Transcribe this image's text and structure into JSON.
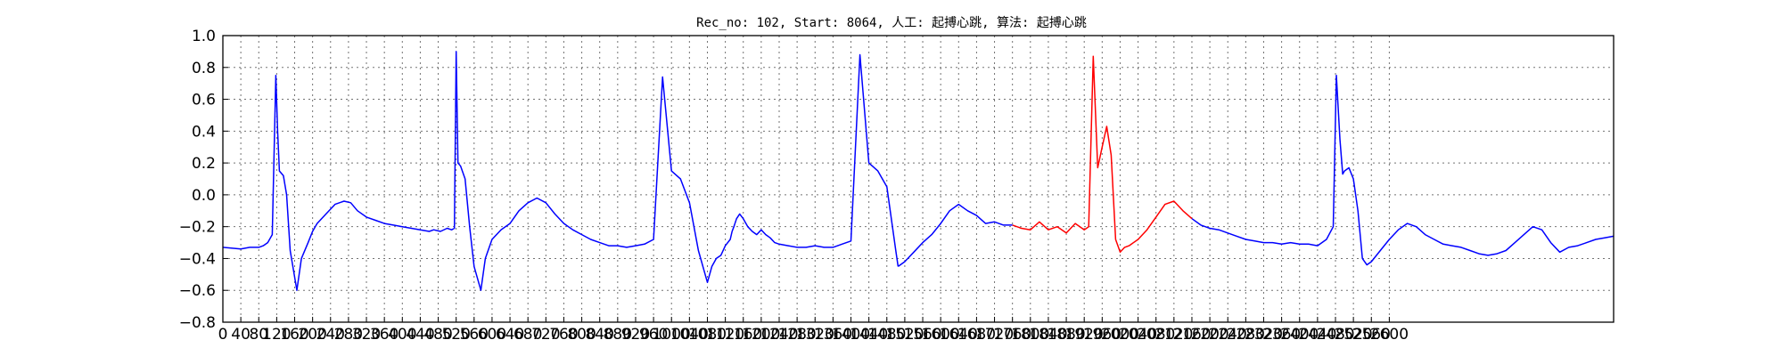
{
  "chart_data": {
    "type": "line",
    "title": "Rec_no: 102, Start: 8064, 人工: 起搏心跳, 算法: 起搏心跳",
    "xlabel": "",
    "ylabel": "",
    "xlim": [
      0,
      3100
    ],
    "ylim": [
      -0.8,
      1.0
    ],
    "grid": true,
    "yticks": [
      -0.8,
      -0.6,
      -0.4,
      -0.2,
      0.0,
      0.2,
      0.4,
      0.6,
      0.8,
      1.0
    ],
    "ytick_labels": [
      "−0.8",
      "−0.6",
      "−0.4",
      "−0.2",
      "0.0",
      "0.2",
      "0.4",
      "0.6",
      "0.8",
      "1.0"
    ],
    "xticks": [
      0,
      40,
      80,
      120,
      160,
      200,
      240,
      280,
      320,
      360,
      400,
      440,
      480,
      520,
      560,
      600,
      640,
      680,
      720,
      760,
      800,
      840,
      880,
      920,
      960,
      1000,
      1040,
      1080,
      1120,
      1160,
      1200,
      1240,
      1280,
      1320,
      1360,
      1400,
      1440,
      1480,
      1520,
      1560,
      1600,
      1640,
      1680,
      1720,
      1760,
      1800,
      1840,
      1880,
      1920,
      1960,
      2000,
      2040,
      2080,
      2120,
      2160,
      2200,
      2240,
      2280,
      2320,
      2360,
      2400,
      2440,
      2480,
      2520,
      2560,
      2600
    ],
    "xtick_labels": [
      "0",
      "40",
      "80",
      "120",
      "160",
      "200",
      "240",
      "280",
      "320",
      "360",
      "400",
      "440",
      "480",
      "520",
      "560",
      "600",
      "640",
      "680",
      "720",
      "760",
      "800",
      "840",
      "880",
      "920",
      "960",
      "1000",
      "1040",
      "1080",
      "1120",
      "1160",
      "1200",
      "1240",
      "1280",
      "1320",
      "1360",
      "1400",
      "1440",
      "1480",
      "1520",
      "1560",
      "1600",
      "1640",
      "1680",
      "1720",
      "1760",
      "1800",
      "1840",
      "1880",
      "1920",
      "1960",
      "2000",
      "2040",
      "2080",
      "2120",
      "2160",
      "2200",
      "2240",
      "2280",
      "2320",
      "2360",
      "2400",
      "2440",
      "2480",
      "2520",
      "2560",
      "2600"
    ],
    "colors": {
      "normal": "#0000ff",
      "highlight": "#ff0000"
    },
    "series": [
      {
        "color": "#0000ff",
        "x": [
          0,
          40,
          60,
          80,
          90,
          100,
          110,
          118,
          122,
          126,
          135,
          142,
          150,
          165,
          175,
          190,
          200,
          210,
          230,
          250,
          270,
          285,
          300,
          320,
          340,
          360,
          380,
          400,
          420,
          440,
          460,
          470,
          485,
          500,
          510,
          516,
          520,
          524,
          530,
          540,
          550,
          560,
          575,
          585,
          600,
          620,
          640,
          660,
          680,
          700,
          720,
          740,
          760,
          780,
          800,
          820,
          840,
          860,
          880,
          900,
          920,
          940,
          960,
          980,
          1000,
          1020,
          1040,
          1060,
          1080,
          1090,
          1100,
          1110,
          1120,
          1131,
          1135,
          1139,
          1145,
          1152,
          1160,
          1170,
          1180,
          1190,
          1200,
          1210,
          1220,
          1230,
          1240,
          1260,
          1280,
          1300,
          1320,
          1340,
          1360,
          1380,
          1400,
          1420,
          1440,
          1460,
          1480,
          1500,
          1505
        ],
        "y": [
          -0.33,
          -0.34,
          -0.33,
          -0.33,
          -0.32,
          -0.3,
          -0.25,
          0.75,
          0.4,
          0.15,
          0.12,
          0.0,
          -0.35,
          -0.6,
          -0.4,
          -0.3,
          -0.23,
          -0.18,
          -0.12,
          -0.06,
          -0.04,
          -0.05,
          -0.1,
          -0.14,
          -0.16,
          -0.18,
          -0.19,
          -0.2,
          -0.21,
          -0.22,
          -0.23,
          -0.22,
          -0.23,
          -0.21,
          -0.22,
          -0.21,
          0.9,
          0.2,
          0.18,
          0.1,
          -0.2,
          -0.45,
          -0.6,
          -0.4,
          -0.28,
          -0.22,
          -0.18,
          -0.1,
          -0.05,
          -0.02,
          -0.05,
          -0.12,
          -0.18,
          -0.22,
          -0.25,
          -0.28,
          -0.3,
          -0.32,
          -0.32,
          -0.33,
          -0.32,
          -0.31,
          -0.28,
          0.74,
          0.15,
          0.1,
          -0.05,
          -0.35,
          -0.55,
          -0.45,
          -0.4,
          -0.38,
          -0.32,
          -0.28,
          -0.23,
          -0.2,
          -0.15,
          -0.12,
          -0.15,
          -0.2,
          -0.23,
          -0.25,
          -0.22,
          -0.25,
          -0.27,
          -0.3,
          -0.31,
          -0.32,
          -0.33,
          -0.33,
          -0.32,
          -0.33,
          -0.33,
          -0.31,
          -0.29,
          0.88,
          0.2,
          0.15,
          0.05,
          -0.35,
          -0.45
        ]
      },
      {
        "color": "#0000ff",
        "x": [
          1505,
          1520,
          1540,
          1560,
          1580,
          1600,
          1620,
          1640,
          1660,
          1680,
          1700,
          1720,
          1740,
          1760
        ],
        "y": [
          -0.45,
          -0.42,
          -0.36,
          -0.3,
          -0.25,
          -0.18,
          -0.1,
          -0.06,
          -0.1,
          -0.13,
          -0.18,
          -0.17,
          -0.19,
          -0.19
        ]
      },
      {
        "color": "#ff0000",
        "x": [
          1760,
          1780,
          1800,
          1820,
          1840,
          1860,
          1880,
          1900,
          1920,
          1930,
          1940,
          1950,
          1960,
          1970,
          1980,
          1990,
          2000,
          2010,
          2020,
          2040,
          2060,
          2080,
          2100,
          2120,
          2140,
          2160
        ],
        "y": [
          -0.19,
          -0.21,
          -0.22,
          -0.17,
          -0.22,
          -0.2,
          -0.24,
          -0.18,
          -0.22,
          -0.2,
          0.87,
          0.17,
          0.3,
          0.43,
          0.25,
          -0.28,
          -0.36,
          -0.33,
          -0.32,
          -0.28,
          -0.22,
          -0.14,
          -0.06,
          -0.04,
          -0.1,
          -0.15
        ]
      },
      {
        "color": "#0000ff",
        "x": [
          2160,
          2180,
          2200,
          2220,
          2240,
          2260,
          2280,
          2300,
          2320,
          2340,
          2360,
          2380,
          2400,
          2420,
          2440,
          2460,
          2475,
          2482,
          2490,
          2496,
          2500,
          2510,
          2520,
          2530,
          2540,
          2550,
          2560,
          2580,
          2600,
          2620,
          2640,
          2660,
          2680,
          2700,
          2720,
          2740,
          2760,
          2780,
          2800,
          2820,
          2840,
          2860,
          2880,
          2900,
          2920,
          2940,
          2960,
          2980,
          3000,
          3020,
          3040,
          3060,
          3080,
          3100
        ],
        "y": [
          -0.15,
          -0.19,
          -0.21,
          -0.22,
          -0.24,
          -0.26,
          -0.28,
          -0.29,
          -0.3,
          -0.3,
          -0.31,
          -0.3,
          -0.31,
          -0.31,
          -0.32,
          -0.28,
          -0.2,
          0.75,
          0.35,
          0.13,
          0.15,
          0.17,
          0.1,
          -0.1,
          -0.4,
          -0.44,
          -0.42,
          -0.35,
          -0.28,
          -0.22,
          -0.18,
          -0.2,
          -0.25,
          -0.28,
          -0.31,
          -0.32,
          -0.33,
          -0.35,
          -0.37,
          -0.38,
          -0.37,
          -0.35,
          -0.3,
          -0.25,
          -0.2,
          -0.22,
          -0.3,
          -0.36,
          -0.33,
          -0.32,
          -0.3,
          -0.28,
          -0.27,
          -0.26
        ]
      }
    ]
  }
}
